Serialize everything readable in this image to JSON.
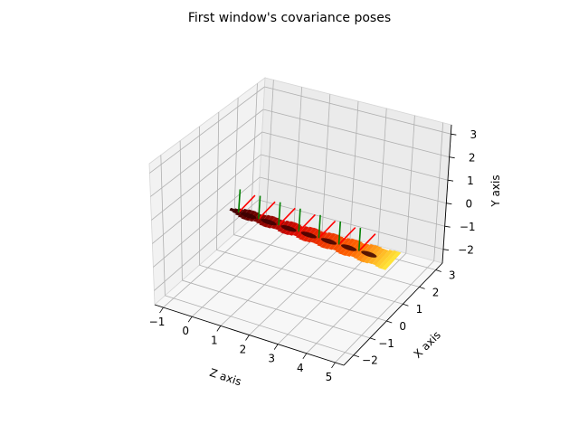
{
  "chart_data": {
    "type": "3d-surface-with-pose-axes",
    "title": "First window's covariance poses",
    "axes": {
      "x": {
        "label": "Z axis",
        "ticks": [
          "−1",
          "0",
          "1",
          "2",
          "3",
          "4",
          "5"
        ],
        "lim": [
          -1.3,
          5.3
        ]
      },
      "y": {
        "label": "X axis",
        "ticks": [
          "−2",
          "−1",
          "0",
          "1",
          "2",
          "3"
        ],
        "lim": [
          -2.6,
          3.4
        ]
      },
      "z": {
        "label": "Y axis",
        "ticks": [
          "−2",
          "−1",
          "0",
          "1",
          "2",
          "3"
        ],
        "lim": [
          -2.6,
          3.4
        ]
      }
    },
    "grid": true,
    "colormap": "hot",
    "colors": {
      "pane": "#f2f2f2",
      "grid": "#b0b0b0",
      "pose_x_axis": "#ff0000",
      "pose_y_axis": "#008000",
      "surface_dark": "#3a0000",
      "surface_mid": "#e03000",
      "surface_light": "#ffe040"
    },
    "poses": [
      {
        "z": 0,
        "x": 0,
        "y": 0
      },
      {
        "z": 0.7,
        "x": 0,
        "y": 0
      },
      {
        "z": 1.4,
        "x": 0,
        "y": 0
      },
      {
        "z": 2.1,
        "x": 0,
        "y": 0
      },
      {
        "z": 2.8,
        "x": 0,
        "y": 0
      },
      {
        "z": 3.5,
        "x": 0,
        "y": 0
      },
      {
        "z": 4.2,
        "x": 0,
        "y": 0
      }
    ]
  }
}
